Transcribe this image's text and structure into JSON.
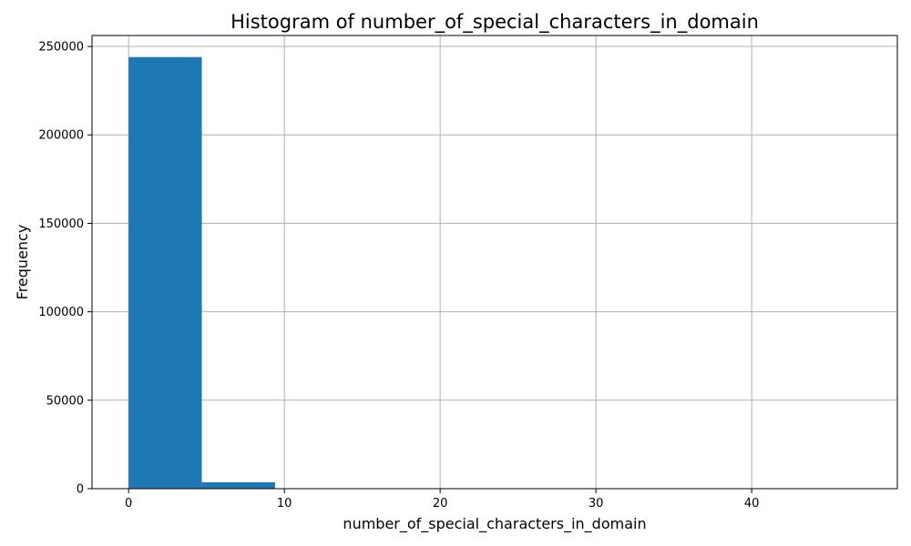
{
  "chart_data": {
    "type": "bar",
    "title": "Histogram of number_of_special_characters_in_domain",
    "xlabel": "number_of_special_characters_in_domain",
    "ylabel": "Frequency",
    "bins": [
      {
        "x0": 0.0,
        "x1": 4.7,
        "value": 244000
      },
      {
        "x0": 4.7,
        "x1": 9.4,
        "value": 3600
      },
      {
        "x0": 9.4,
        "x1": 14.1,
        "value": 80
      },
      {
        "x0": 14.1,
        "x1": 18.8,
        "value": 10
      },
      {
        "x0": 18.8,
        "x1": 23.5,
        "value": 3
      },
      {
        "x0": 23.5,
        "x1": 28.2,
        "value": 1
      },
      {
        "x0": 28.2,
        "x1": 32.9,
        "value": 1
      },
      {
        "x0": 32.9,
        "x1": 37.6,
        "value": 0
      },
      {
        "x0": 37.6,
        "x1": 42.3,
        "value": 0
      },
      {
        "x0": 42.3,
        "x1": 47.0,
        "value": 1
      }
    ],
    "xlim": [
      -2.35,
      49.35
    ],
    "ylim": [
      0,
      256200
    ],
    "xticks": [
      0,
      10,
      20,
      30,
      40
    ],
    "yticks": [
      0,
      50000,
      100000,
      150000,
      200000,
      250000
    ],
    "grid": true,
    "bar_color": "#1f77b4"
  }
}
